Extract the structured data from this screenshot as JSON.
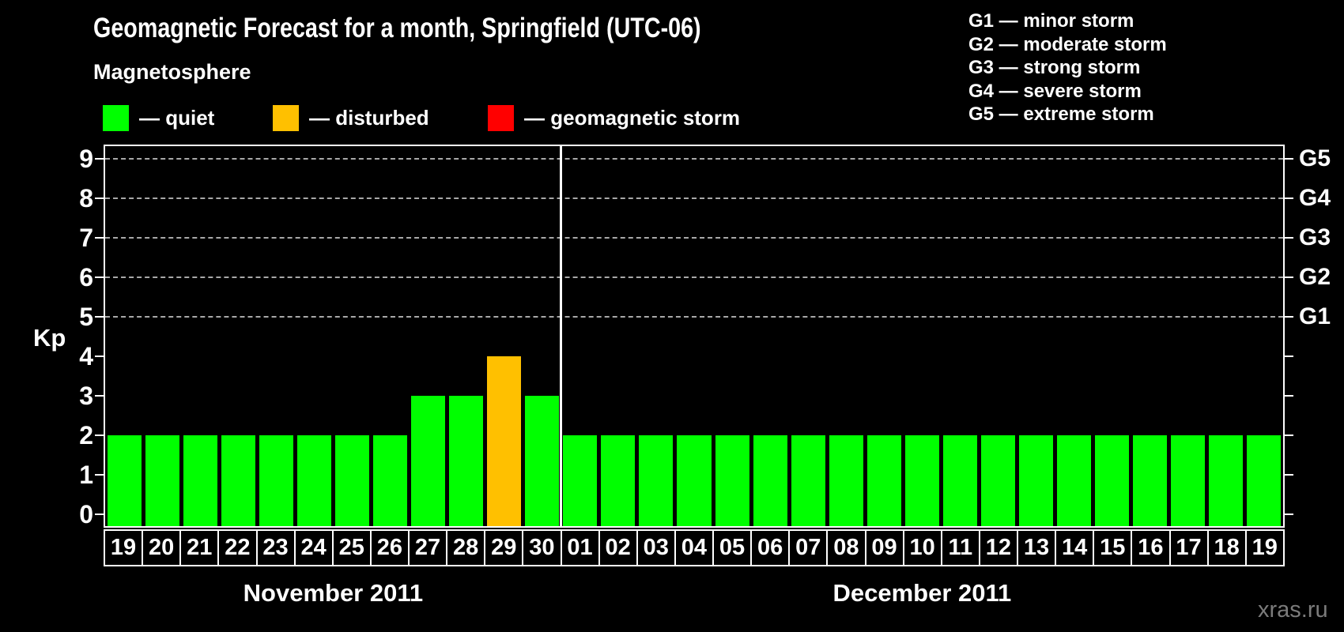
{
  "title": "Geomagnetic Forecast for a month, Springfield (UTC-06)",
  "magnetosphere": {
    "heading": "Magnetosphere",
    "items": [
      {
        "label": "— quiet",
        "state": "quiet",
        "color": "#00ff00"
      },
      {
        "label": "— disturbed",
        "state": "disturbed",
        "color": "#ffc000"
      },
      {
        "label": "— geomagnetic storm",
        "state": "storm",
        "color": "#ff0000"
      }
    ]
  },
  "storm_scale_legend": [
    "G1 — minor storm",
    "G2 — moderate storm",
    "G3 — strong storm",
    "G4 — severe storm",
    "G5 — extreme storm"
  ],
  "watermark": "xras.ru",
  "colors": {
    "background": "#000000",
    "axis": "#ffffff",
    "grid": "#a8a8a8",
    "quiet": "#00ff00",
    "disturbed": "#ffc000",
    "storm": "#ff0000"
  },
  "chart_data": {
    "type": "bar",
    "title": "Geomagnetic Forecast for a month, Springfield (UTC-06)",
    "ylabel": "Kp",
    "ylim": [
      -0.3,
      9.4
    ],
    "yticks": [
      0,
      1,
      2,
      3,
      4,
      5,
      6,
      7,
      8,
      9
    ],
    "grid_levels": [
      5,
      6,
      7,
      8,
      9
    ],
    "grid": true,
    "legend_position": "top-left",
    "right_axis": {
      "labels": [
        "G1",
        "G2",
        "G3",
        "G4",
        "G5"
      ],
      "at_kp": [
        5,
        6,
        7,
        8,
        9
      ]
    },
    "state_colors": {
      "quiet": "#00ff00",
      "disturbed": "#ffc000",
      "storm": "#ff0000"
    },
    "groups": [
      {
        "label": "November 2011",
        "days": [
          "19",
          "20",
          "21",
          "22",
          "23",
          "24",
          "25",
          "26",
          "27",
          "28",
          "29",
          "30"
        ],
        "values": [
          2,
          2,
          2,
          2,
          2,
          2,
          2,
          2,
          3,
          3,
          4,
          3
        ],
        "states": [
          "quiet",
          "quiet",
          "quiet",
          "quiet",
          "quiet",
          "quiet",
          "quiet",
          "quiet",
          "quiet",
          "quiet",
          "disturbed",
          "quiet"
        ]
      },
      {
        "label": "December 2011",
        "days": [
          "01",
          "02",
          "03",
          "04",
          "05",
          "06",
          "07",
          "08",
          "09",
          "10",
          "11",
          "12",
          "13",
          "14",
          "15",
          "16",
          "17",
          "18",
          "19"
        ],
        "values": [
          2,
          2,
          2,
          2,
          2,
          2,
          2,
          2,
          2,
          2,
          2,
          2,
          2,
          2,
          2,
          2,
          2,
          2,
          2
        ],
        "states": [
          "quiet",
          "quiet",
          "quiet",
          "quiet",
          "quiet",
          "quiet",
          "quiet",
          "quiet",
          "quiet",
          "quiet",
          "quiet",
          "quiet",
          "quiet",
          "quiet",
          "quiet",
          "quiet",
          "quiet",
          "quiet",
          "quiet"
        ]
      }
    ]
  }
}
